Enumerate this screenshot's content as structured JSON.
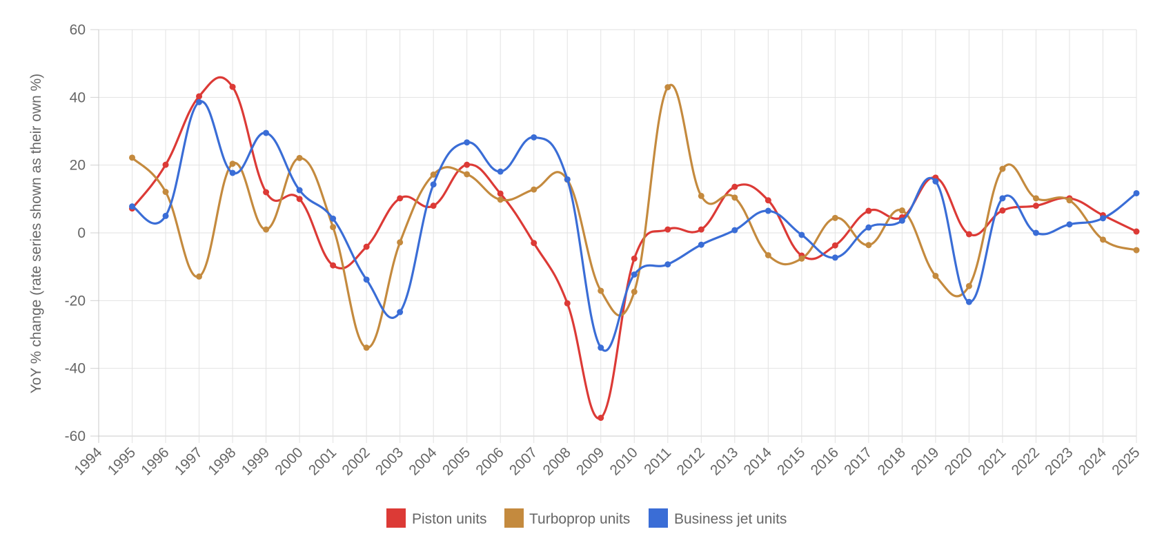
{
  "chart_data": {
    "type": "line",
    "title": "",
    "xlabel": "",
    "ylabel": "YoY % change (rate series shown as their own %)",
    "x": [
      "1994",
      "1995",
      "1996",
      "1997",
      "1998",
      "1999",
      "2000",
      "2001",
      "2002",
      "2003",
      "2004",
      "2005",
      "2006",
      "2007",
      "2008",
      "2009",
      "2010",
      "2011",
      "2012",
      "2013",
      "2014",
      "2015",
      "2016",
      "2017",
      "2018",
      "2019",
      "2020",
      "2021",
      "2022",
      "2023",
      "2024",
      "2025"
    ],
    "ylim": [
      -60,
      60
    ],
    "yticks": [
      "60",
      "40",
      "20",
      "0",
      "-20",
      "-40",
      "-60"
    ],
    "grid": true,
    "legend_position": "bottom",
    "series": [
      {
        "name": "Piston units",
        "color": "#dc3a36",
        "values": [
          null,
          7.2,
          20.1,
          40.3,
          43.1,
          12.0,
          10.0,
          -9.6,
          -4.1,
          10.2,
          8.0,
          20.1,
          11.6,
          -3.0,
          -20.8,
          -54.6,
          -7.6,
          1.0,
          1.0,
          13.6,
          9.6,
          -6.7,
          -3.7,
          6.5,
          4.6,
          16.3,
          -0.4,
          6.6,
          8.0,
          10.2,
          5.2,
          0.4
        ]
      },
      {
        "name": "Turboprop units",
        "color": "#c48a3e",
        "values": [
          null,
          22.2,
          12.1,
          -12.9,
          20.4,
          1.0,
          22.1,
          1.7,
          -33.9,
          -2.8,
          17.2,
          17.3,
          9.8,
          12.8,
          15.7,
          -17.1,
          -17.4,
          43.0,
          10.9,
          10.4,
          -6.6,
          -7.6,
          4.4,
          -3.6,
          6.6,
          -12.7,
          -15.7,
          18.9,
          10.2,
          9.6,
          -2.0,
          -5.1
        ]
      },
      {
        "name": "Business jet units",
        "color": "#3a6dd6",
        "values": [
          null,
          7.8,
          5.0,
          38.6,
          17.7,
          29.5,
          12.6,
          4.2,
          -13.8,
          -23.4,
          14.3,
          26.7,
          18.1,
          28.2,
          15.8,
          -33.9,
          -12.3,
          -9.3,
          -3.5,
          0.8,
          6.5,
          -0.6,
          -7.3,
          1.6,
          3.6,
          15.2,
          -20.4,
          10.2,
          0.0,
          2.5,
          4.3,
          11.7
        ]
      }
    ]
  }
}
